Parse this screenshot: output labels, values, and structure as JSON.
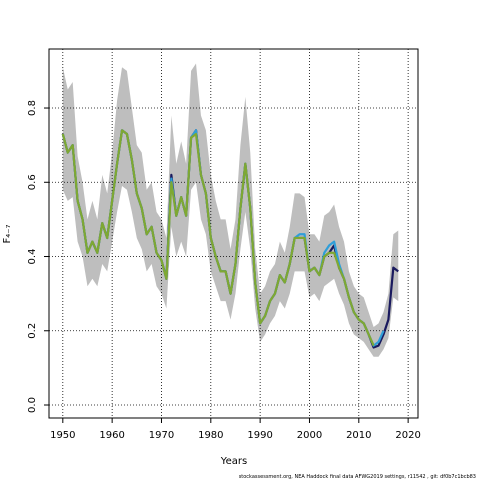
{
  "chart_data": {
    "type": "line",
    "xlabel": "Years",
    "ylabel": "F₄₋₇",
    "footer": "stockassessment.org, NEA Haddock final data AFWG2019 settings, r11542 , git: df0b7c1bcb83",
    "x": [
      1950,
      1951,
      1952,
      1953,
      1954,
      1955,
      1956,
      1957,
      1958,
      1959,
      1960,
      1961,
      1962,
      1963,
      1964,
      1965,
      1966,
      1967,
      1968,
      1969,
      1970,
      1971,
      1972,
      1973,
      1974,
      1975,
      1976,
      1977,
      1978,
      1979,
      1980,
      1981,
      1982,
      1983,
      1984,
      1985,
      1986,
      1987,
      1988,
      1989,
      1990,
      1991,
      1992,
      1993,
      1994,
      1995,
      1996,
      1997,
      1998,
      1999,
      2000,
      2001,
      2002,
      2003,
      2004,
      2005,
      2006,
      2007,
      2008,
      2009,
      2010,
      2011,
      2012,
      2013,
      2014,
      2015,
      2016,
      2017,
      2018
    ],
    "band": {
      "color": "#bebebe",
      "upper": [
        0.91,
        0.85,
        0.87,
        0.67,
        0.6,
        0.5,
        0.55,
        0.5,
        0.62,
        0.57,
        0.68,
        0.82,
        0.91,
        0.9,
        0.8,
        0.7,
        0.68,
        0.58,
        0.6,
        0.52,
        0.5,
        0.45,
        0.78,
        0.65,
        0.71,
        0.65,
        0.9,
        0.92,
        0.78,
        0.74,
        0.62,
        0.55,
        0.5,
        0.5,
        0.42,
        0.5,
        0.7,
        0.83,
        0.68,
        0.42,
        0.3,
        0.32,
        0.36,
        0.38,
        0.44,
        0.41,
        0.48,
        0.57,
        0.57,
        0.56,
        0.46,
        0.46,
        0.44,
        0.51,
        0.52,
        0.54,
        0.48,
        0.44,
        0.36,
        0.32,
        0.3,
        0.29,
        0.25,
        0.21,
        0.22,
        0.25,
        0.3,
        0.46,
        0.47
      ],
      "lower": [
        0.58,
        0.55,
        0.56,
        0.44,
        0.4,
        0.32,
        0.34,
        0.32,
        0.38,
        0.36,
        0.44,
        0.52,
        0.59,
        0.58,
        0.52,
        0.45,
        0.42,
        0.36,
        0.38,
        0.32,
        0.3,
        0.26,
        0.48,
        0.4,
        0.44,
        0.4,
        0.58,
        0.6,
        0.5,
        0.46,
        0.36,
        0.32,
        0.28,
        0.28,
        0.23,
        0.3,
        0.42,
        0.52,
        0.42,
        0.26,
        0.17,
        0.19,
        0.22,
        0.24,
        0.28,
        0.26,
        0.3,
        0.36,
        0.36,
        0.36,
        0.29,
        0.3,
        0.28,
        0.32,
        0.33,
        0.34,
        0.3,
        0.27,
        0.22,
        0.19,
        0.18,
        0.17,
        0.15,
        0.13,
        0.13,
        0.15,
        0.18,
        0.29,
        0.28
      ]
    },
    "series": [
      {
        "color": "#1a1a5e",
        "values": [
          0.73,
          0.68,
          0.7,
          0.55,
          0.5,
          0.41,
          0.44,
          0.41,
          0.49,
          0.45,
          0.55,
          0.65,
          0.74,
          0.73,
          0.66,
          0.57,
          0.53,
          0.46,
          0.48,
          0.41,
          0.39,
          0.34,
          0.62,
          0.51,
          0.56,
          0.51,
          0.72,
          0.74,
          0.62,
          0.57,
          0.45,
          0.4,
          0.36,
          0.36,
          0.3,
          0.38,
          0.53,
          0.65,
          0.53,
          0.33,
          0.22,
          0.24,
          0.28,
          0.3,
          0.35,
          0.33,
          0.38,
          0.45,
          0.45,
          0.45,
          0.36,
          0.37,
          0.35,
          0.4,
          0.41,
          0.43,
          0.37,
          0.34,
          0.29,
          0.25,
          0.23,
          0.22,
          0.19,
          0.155,
          0.16,
          0.19,
          0.23,
          0.37,
          0.36
        ]
      },
      {
        "color": "#2f9ed8",
        "values": [
          0.73,
          0.68,
          0.7,
          0.55,
          0.5,
          0.41,
          0.44,
          0.41,
          0.49,
          0.45,
          0.55,
          0.65,
          0.74,
          0.73,
          0.66,
          0.57,
          0.53,
          0.46,
          0.48,
          0.41,
          0.39,
          0.34,
          0.61,
          0.51,
          0.56,
          0.51,
          0.72,
          0.74,
          0.62,
          0.57,
          0.45,
          0.4,
          0.36,
          0.36,
          0.3,
          0.38,
          0.53,
          0.65,
          0.53,
          0.33,
          0.22,
          0.24,
          0.28,
          0.3,
          0.35,
          0.33,
          0.38,
          0.45,
          0.46,
          0.46,
          0.36,
          0.37,
          0.35,
          0.41,
          0.43,
          0.44,
          0.38,
          0.34,
          0.29,
          0.25,
          0.23,
          0.22,
          0.19,
          0.16,
          0.17,
          0.2,
          null,
          null,
          null
        ]
      },
      {
        "color": "#7fa832",
        "values": [
          0.73,
          0.68,
          0.7,
          0.55,
          0.5,
          0.41,
          0.44,
          0.41,
          0.49,
          0.45,
          0.55,
          0.65,
          0.74,
          0.73,
          0.66,
          0.57,
          0.53,
          0.46,
          0.48,
          0.41,
          0.39,
          0.34,
          0.6,
          0.51,
          0.56,
          0.51,
          0.72,
          0.73,
          0.62,
          0.57,
          0.45,
          0.4,
          0.36,
          0.36,
          0.3,
          0.38,
          0.53,
          0.65,
          0.53,
          0.33,
          0.22,
          0.24,
          0.28,
          0.3,
          0.35,
          0.33,
          0.38,
          0.45,
          0.45,
          0.45,
          0.36,
          0.37,
          0.35,
          0.4,
          0.41,
          0.41,
          0.37,
          0.34,
          0.29,
          0.25,
          0.23,
          0.22,
          0.19,
          0.16,
          null,
          null,
          null,
          null,
          null
        ]
      }
    ],
    "xlim": [
      1947.2,
      2022.0
    ],
    "ylim": [
      -0.035,
      0.959
    ],
    "xticks": [
      1950,
      1960,
      1970,
      1980,
      1990,
      2000,
      2010,
      2020
    ],
    "yticks": [
      {
        "value": 0,
        "label": "0.0"
      },
      0.2,
      0.4,
      0.6,
      0.8
    ],
    "grid": true
  }
}
